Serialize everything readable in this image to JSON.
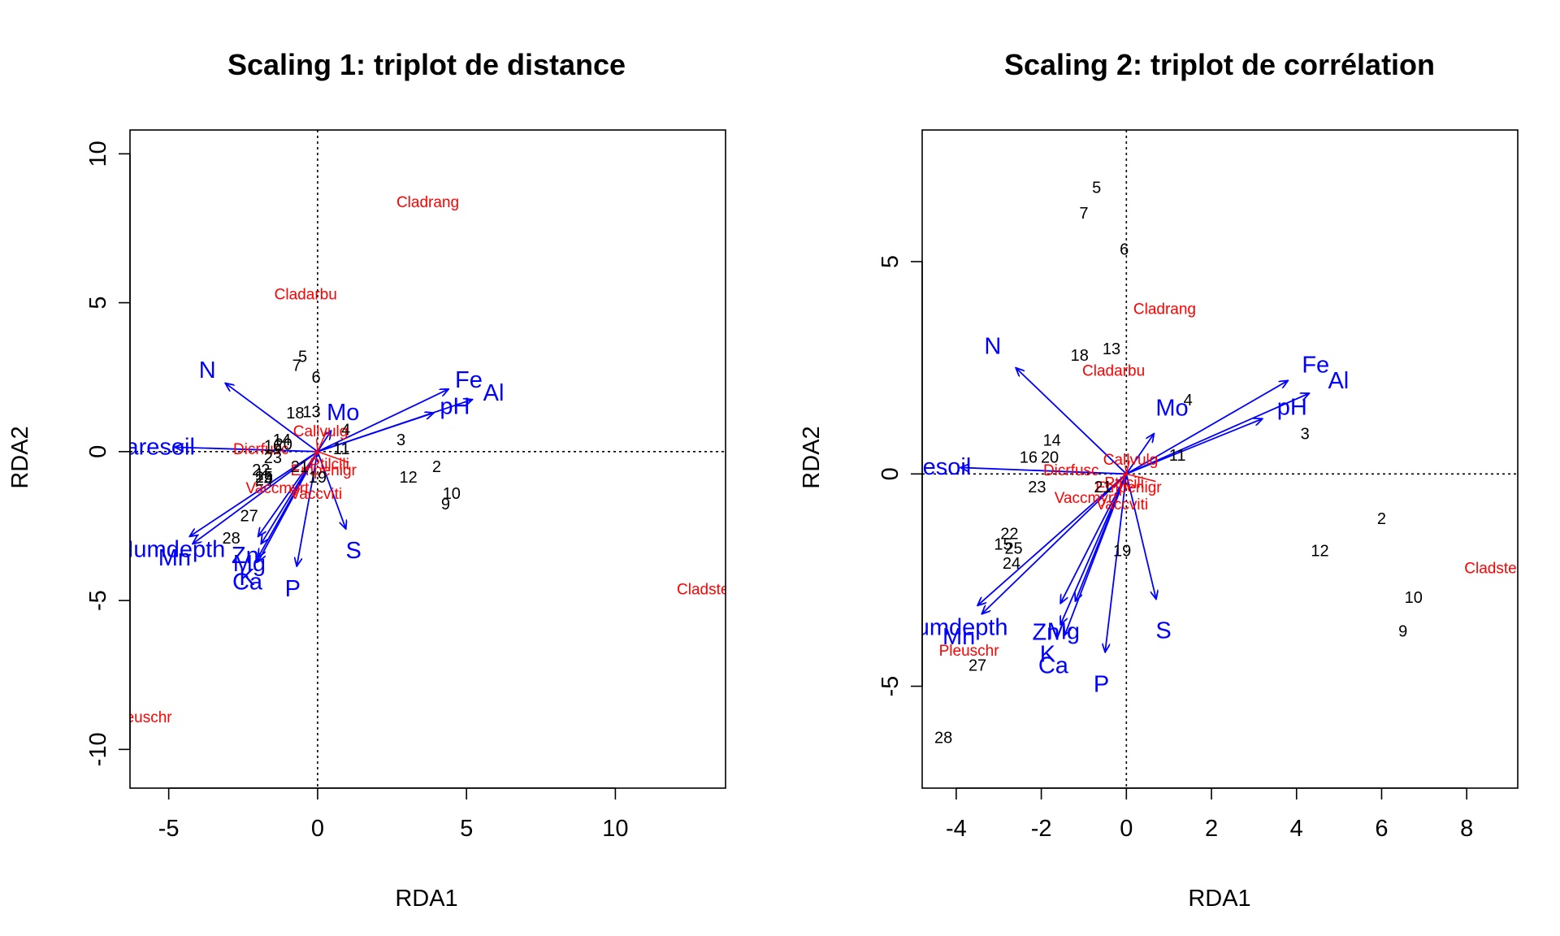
{
  "colors": {
    "sites": "#000000",
    "species": "#ff0000",
    "env": "#0000ff",
    "axes": "#000000"
  },
  "chart_data": [
    {
      "type": "scatter",
      "title": "Scaling 1: triplot de distance",
      "xlabel": "RDA1",
      "ylabel": "RDA2",
      "xlim": [
        -6.3,
        13.7
      ],
      "ylim": [
        -11.3,
        10.8
      ],
      "xticks": [
        -5,
        0,
        5,
        10
      ],
      "yticks": [
        -10,
        -5,
        0,
        5,
        10
      ],
      "sites": [
        {
          "label": "5",
          "x": -0.5,
          "y": 3.2
        },
        {
          "label": "7",
          "x": -0.7,
          "y": 2.9
        },
        {
          "label": "6",
          "x": -0.05,
          "y": 2.5
        },
        {
          "label": "18",
          "x": -0.75,
          "y": 1.3
        },
        {
          "label": "13",
          "x": -0.2,
          "y": 1.35
        },
        {
          "label": "14",
          "x": -1.2,
          "y": 0.4
        },
        {
          "label": "3",
          "x": 2.8,
          "y": 0.4
        },
        {
          "label": "4",
          "x": 0.95,
          "y": 0.75
        },
        {
          "label": "20",
          "x": -1.15,
          "y": 0.25
        },
        {
          "label": "16",
          "x": -1.5,
          "y": 0.2
        },
        {
          "label": "23",
          "x": -1.5,
          "y": -0.2
        },
        {
          "label": "11",
          "x": 0.8,
          "y": 0.1
        },
        {
          "label": "2",
          "x": 4.0,
          "y": -0.5
        },
        {
          "label": "12",
          "x": 3.05,
          "y": -0.85
        },
        {
          "label": "10",
          "x": 4.5,
          "y": -1.4
        },
        {
          "label": "9",
          "x": 4.3,
          "y": -1.75
        },
        {
          "label": "19",
          "x": 0.0,
          "y": -0.85
        },
        {
          "label": "21",
          "x": -0.6,
          "y": -0.5
        },
        {
          "label": "22",
          "x": -1.9,
          "y": -0.6
        },
        {
          "label": "15",
          "x": -1.8,
          "y": -0.75
        },
        {
          "label": "25",
          "x": -1.8,
          "y": -0.85
        },
        {
          "label": "24",
          "x": -1.8,
          "y": -0.95
        },
        {
          "label": "27",
          "x": -2.3,
          "y": -2.15
        },
        {
          "label": "28",
          "x": -2.9,
          "y": -2.9
        }
      ],
      "species": [
        {
          "label": "Cladrang",
          "x": 3.7,
          "y": 8.4
        },
        {
          "label": "Cladarbu",
          "x": -0.4,
          "y": 5.3
        },
        {
          "label": "Cladstel",
          "x": 13.0,
          "y": -4.6
        },
        {
          "label": "Pleuschr",
          "x": -5.9,
          "y": -8.9
        },
        {
          "label": "Dicrfusc",
          "x": -1.9,
          "y": 0.1
        },
        {
          "label": "Vaccviti",
          "x": -0.05,
          "y": -1.4
        },
        {
          "label": "Vaccmyrt",
          "x": -1.35,
          "y": -1.2
        },
        {
          "label": "Ptilcili",
          "x": 0.4,
          "y": -0.4
        },
        {
          "label": "Callvulg",
          "x": 0.1,
          "y": 0.7
        },
        {
          "label": "Empenigr",
          "x": 0.2,
          "y": -0.6
        }
      ],
      "env": [
        {
          "label": "N",
          "x": -3.1,
          "y": 2.3
        },
        {
          "label": "Fe",
          "x": 4.4,
          "y": 2.1
        },
        {
          "label": "Al",
          "x": 5.2,
          "y": 1.75
        },
        {
          "label": "pH",
          "x": 3.9,
          "y": 1.3
        },
        {
          "label": "Mo",
          "x": 0.45,
          "y": 0.7
        },
        {
          "label": "Baresoil",
          "x": -4.8,
          "y": 0.15
        },
        {
          "label": "Humdepth",
          "x": -4.3,
          "y": -2.85
        },
        {
          "label": "Mn",
          "x": -4.2,
          "y": -3.1
        },
        {
          "label": "Zn",
          "x": -2.0,
          "y": -2.85
        },
        {
          "label": "Mg",
          "x": -1.9,
          "y": -3.1
        },
        {
          "label": "K",
          "x": -2.0,
          "y": -3.55
        },
        {
          "label": "Ca",
          "x": -2.0,
          "y": -3.7
        },
        {
          "label": "P",
          "x": -0.7,
          "y": -3.85
        },
        {
          "label": "S",
          "x": 0.95,
          "y": -2.6
        }
      ]
    },
    {
      "type": "scatter",
      "title": "Scaling 2: triplot de corrélation",
      "xlabel": "RDA1",
      "ylabel": "RDA2",
      "xlim": [
        -4.8,
        9.2
      ],
      "ylim": [
        -7.4,
        8.1
      ],
      "xticks": [
        -4,
        -2,
        0,
        2,
        4,
        6,
        8
      ],
      "yticks": [
        -5,
        0,
        5
      ],
      "sites": [
        {
          "label": "5",
          "x": -0.7,
          "y": 6.75
        },
        {
          "label": "7",
          "x": -1.0,
          "y": 6.15
        },
        {
          "label": "6",
          "x": -0.05,
          "y": 5.3
        },
        {
          "label": "18",
          "x": -1.1,
          "y": 2.8
        },
        {
          "label": "13",
          "x": -0.35,
          "y": 2.95
        },
        {
          "label": "4",
          "x": 1.45,
          "y": 1.75
        },
        {
          "label": "14",
          "x": -1.75,
          "y": 0.8
        },
        {
          "label": "3",
          "x": 4.2,
          "y": 0.95
        },
        {
          "label": "16",
          "x": -2.3,
          "y": 0.4
        },
        {
          "label": "20",
          "x": -1.8,
          "y": 0.4
        },
        {
          "label": "11",
          "x": 1.2,
          "y": 0.45
        },
        {
          "label": "23",
          "x": -2.1,
          "y": -0.3
        },
        {
          "label": "21",
          "x": -0.55,
          "y": -0.3
        },
        {
          "label": "2",
          "x": 6.0,
          "y": -1.05
        },
        {
          "label": "12",
          "x": 4.55,
          "y": -1.8
        },
        {
          "label": "10",
          "x": 6.75,
          "y": -2.9
        },
        {
          "label": "9",
          "x": 6.5,
          "y": -3.7
        },
        {
          "label": "19",
          "x": -0.1,
          "y": -1.8
        },
        {
          "label": "22",
          "x": -2.75,
          "y": -1.4
        },
        {
          "label": "15",
          "x": -2.9,
          "y": -1.65
        },
        {
          "label": "25",
          "x": -2.65,
          "y": -1.75
        },
        {
          "label": "24",
          "x": -2.7,
          "y": -2.1
        },
        {
          "label": "27",
          "x": -3.5,
          "y": -4.5
        },
        {
          "label": "28",
          "x": -4.3,
          "y": -6.2
        }
      ],
      "species": [
        {
          "label": "Cladrang",
          "x": 0.9,
          "y": 3.9
        },
        {
          "label": "Cladarbu",
          "x": -0.3,
          "y": 2.45
        },
        {
          "label": "Cladstel",
          "x": 8.6,
          "y": -2.2
        },
        {
          "label": "Pleuschr",
          "x": -3.7,
          "y": -4.15
        },
        {
          "label": "Dicrfusc",
          "x": -1.3,
          "y": 0.1
        },
        {
          "label": "Vaccviti",
          "x": -0.1,
          "y": -0.7
        },
        {
          "label": "Vaccmyrt",
          "x": -0.95,
          "y": -0.55
        },
        {
          "label": "Empenigr",
          "x": 0.05,
          "y": -0.3
        },
        {
          "label": "Callvulg",
          "x": 0.1,
          "y": 0.35
        },
        {
          "label": "Ptilcili",
          "x": -0.05,
          "y": -0.2
        }
      ],
      "env": [
        {
          "label": "N",
          "x": -2.6,
          "y": 2.5
        },
        {
          "label": "Fe",
          "x": 3.8,
          "y": 2.2
        },
        {
          "label": "Al",
          "x": 4.3,
          "y": 1.9
        },
        {
          "label": "pH",
          "x": 3.2,
          "y": 1.3
        },
        {
          "label": "Mo",
          "x": 0.65,
          "y": 0.95
        },
        {
          "label": "Baresoil",
          "x": -3.9,
          "y": 0.15
        },
        {
          "label": "Humdepth",
          "x": -3.5,
          "y": -3.1
        },
        {
          "label": "Mn",
          "x": -3.4,
          "y": -3.3
        },
        {
          "label": "Zn",
          "x": -1.55,
          "y": -3.05
        },
        {
          "label": "Mg",
          "x": -1.2,
          "y": -3.0
        },
        {
          "label": "K",
          "x": -1.55,
          "y": -3.55
        },
        {
          "label": "Ca",
          "x": -1.45,
          "y": -3.8
        },
        {
          "label": "P",
          "x": -0.5,
          "y": -4.2
        },
        {
          "label": "S",
          "x": 0.7,
          "y": -2.95
        }
      ]
    }
  ]
}
